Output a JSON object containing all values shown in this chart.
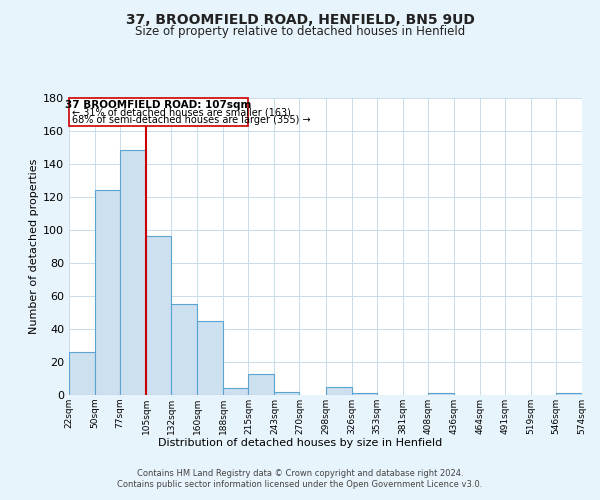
{
  "title": "37, BROOMFIELD ROAD, HENFIELD, BN5 9UD",
  "subtitle": "Size of property relative to detached houses in Henfield",
  "xlabel": "Distribution of detached houses by size in Henfield",
  "ylabel": "Number of detached properties",
  "bar_color": "#cce0f0",
  "bar_edge_color": "#5ba3d0",
  "bin_edges": [
    22,
    50,
    77,
    105,
    132,
    160,
    188,
    215,
    243,
    270,
    298,
    326,
    353,
    381,
    408,
    436,
    464,
    491,
    519,
    546,
    574
  ],
  "bin_labels": [
    "22sqm",
    "50sqm",
    "77sqm",
    "105sqm",
    "132sqm",
    "160sqm",
    "188sqm",
    "215sqm",
    "243sqm",
    "270sqm",
    "298sqm",
    "326sqm",
    "353sqm",
    "381sqm",
    "408sqm",
    "436sqm",
    "464sqm",
    "491sqm",
    "519sqm",
    "546sqm",
    "574sqm"
  ],
  "counts": [
    26,
    124,
    148,
    96,
    55,
    45,
    4,
    13,
    2,
    0,
    5,
    1,
    0,
    0,
    1,
    0,
    0,
    0,
    0,
    1
  ],
  "vline_x": 105,
  "annotation_text_line1": "37 BROOMFIELD ROAD: 107sqm",
  "annotation_line2": "← 31% of detached houses are smaller (163)",
  "annotation_line3": "68% of semi-detached houses are larger (355) →",
  "ylim": [
    0,
    180
  ],
  "yticks": [
    0,
    20,
    40,
    60,
    80,
    100,
    120,
    140,
    160,
    180
  ],
  "footer1": "Contains HM Land Registry data © Crown copyright and database right 2024.",
  "footer2": "Contains public sector information licensed under the Open Government Licence v3.0.",
  "bg_color": "#e8f4fb",
  "plot_bg_color": "#ffffff",
  "grid_color": "#c8dcea",
  "vline_color": "#cc0000",
  "box_edge_color": "#cc0000"
}
